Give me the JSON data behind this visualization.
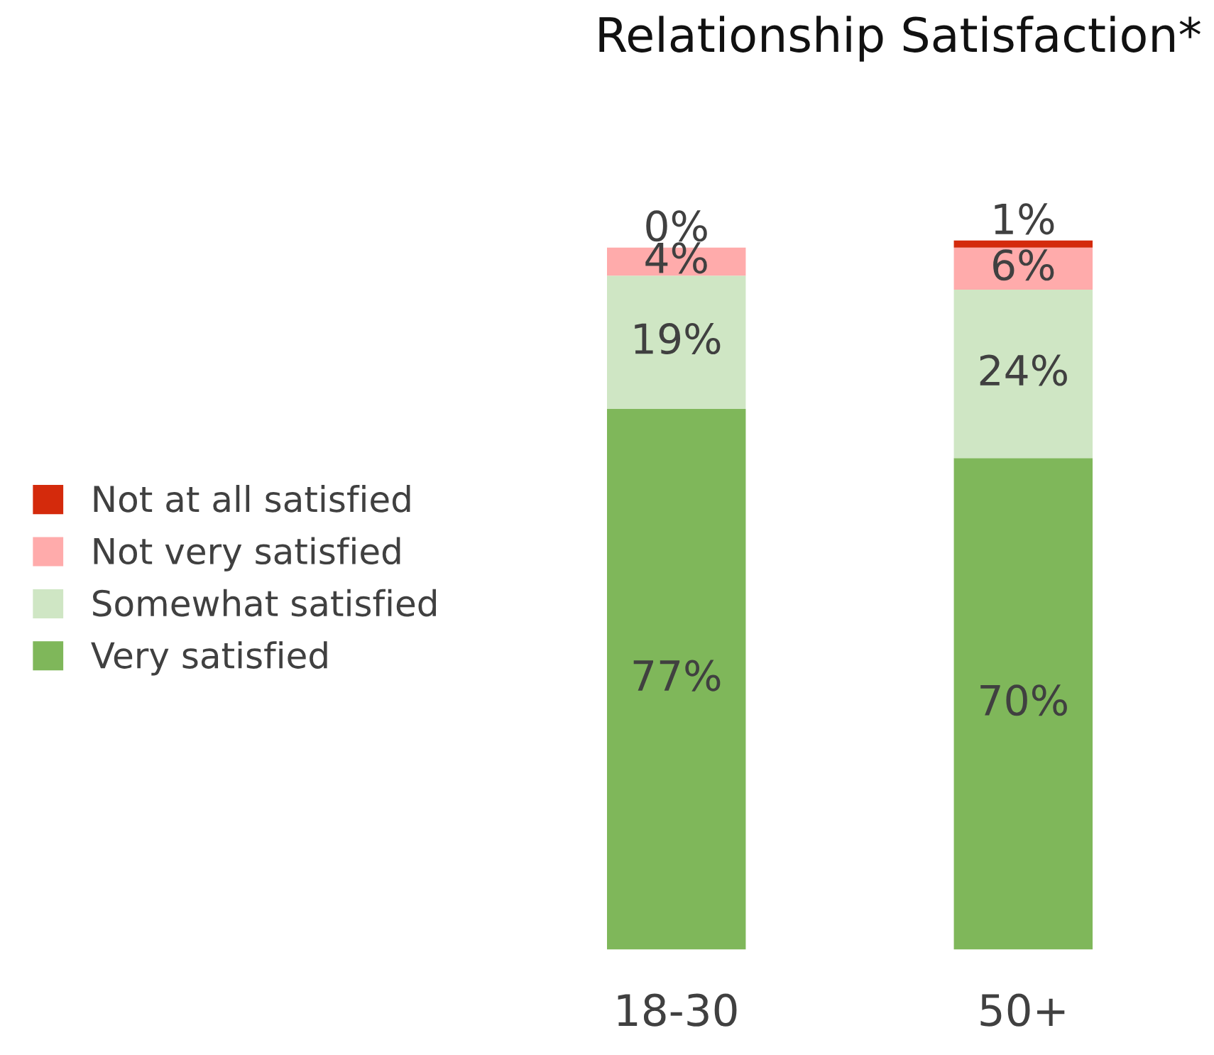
{
  "chart_data": {
    "type": "bar",
    "title": "Relationship Satisfaction*",
    "stacked": true,
    "legend": "left",
    "grid": false,
    "categories": [
      "18-30",
      "50+"
    ],
    "series": [
      {
        "name": "Very satisfied",
        "color": "#7fb75a",
        "values": [
          77,
          70
        ],
        "value_labels": [
          "77%",
          "70%"
        ]
      },
      {
        "name": "Somewhat satisfied",
        "color": "#cfe6c4",
        "values": [
          19,
          24
        ],
        "value_labels": [
          "19%",
          "24%"
        ]
      },
      {
        "name": "Not very satisfied",
        "color": "#ffabab",
        "values": [
          4,
          6
        ],
        "value_labels": [
          "4%",
          "6%"
        ]
      },
      {
        "name": "Not at all satisfied",
        "color": "#d42a0c",
        "values": [
          0,
          1
        ],
        "value_labels": [
          "0%",
          "1%"
        ]
      }
    ]
  }
}
